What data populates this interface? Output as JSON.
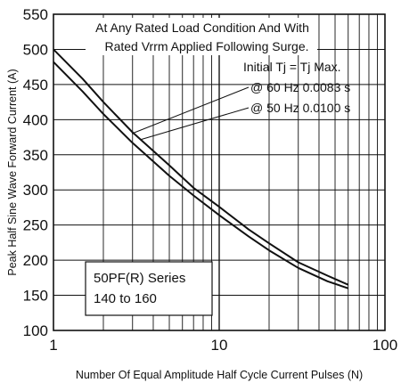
{
  "chart_data": {
    "type": "line",
    "title": "",
    "xlabel": "Number Of Equal Amplitude Half Cycle Current Pulses (N)",
    "ylabel": "Peak Half Sine Wave Forward Current (A)",
    "x_scale": "log",
    "xlim": [
      1,
      100
    ],
    "ylim": [
      100,
      550
    ],
    "grid": true,
    "x_ticks": [
      1,
      10,
      100
    ],
    "x_tick_labels": [
      "1",
      "10",
      "100"
    ],
    "y_ticks": [
      100,
      150,
      200,
      250,
      300,
      350,
      400,
      450,
      500,
      550
    ],
    "y_tick_labels": [
      "100",
      "150",
      "200",
      "250",
      "300",
      "350",
      "400",
      "450",
      "500",
      "550"
    ],
    "annotations": {
      "line1": "At Any Rated Load Condition And With",
      "line2": "Rated Vrrm Applied Following Surge.",
      "line3": "Initial Tj = Tj Max.",
      "label_60hz": "@ 60 Hz 0.0083 s",
      "label_50hz": "@ 50 Hz 0.0100 s"
    },
    "series_box": {
      "line1": "50PF(R) Series",
      "line2": "140 to 160"
    },
    "series": [
      {
        "x": [
          1,
          1.5,
          2,
          3,
          5,
          7,
          10,
          15,
          20,
          30,
          45,
          60
        ],
        "values": [
          500,
          458,
          425,
          382,
          335,
          303,
          276,
          244,
          224,
          197,
          178,
          165
        ]
      },
      {
        "x": [
          1,
          1.5,
          2,
          3,
          5,
          7,
          10,
          15,
          20,
          30,
          45,
          60
        ],
        "values": [
          482,
          440,
          408,
          367,
          320,
          292,
          264,
          234,
          214,
          189,
          170,
          160
        ]
      }
    ]
  }
}
